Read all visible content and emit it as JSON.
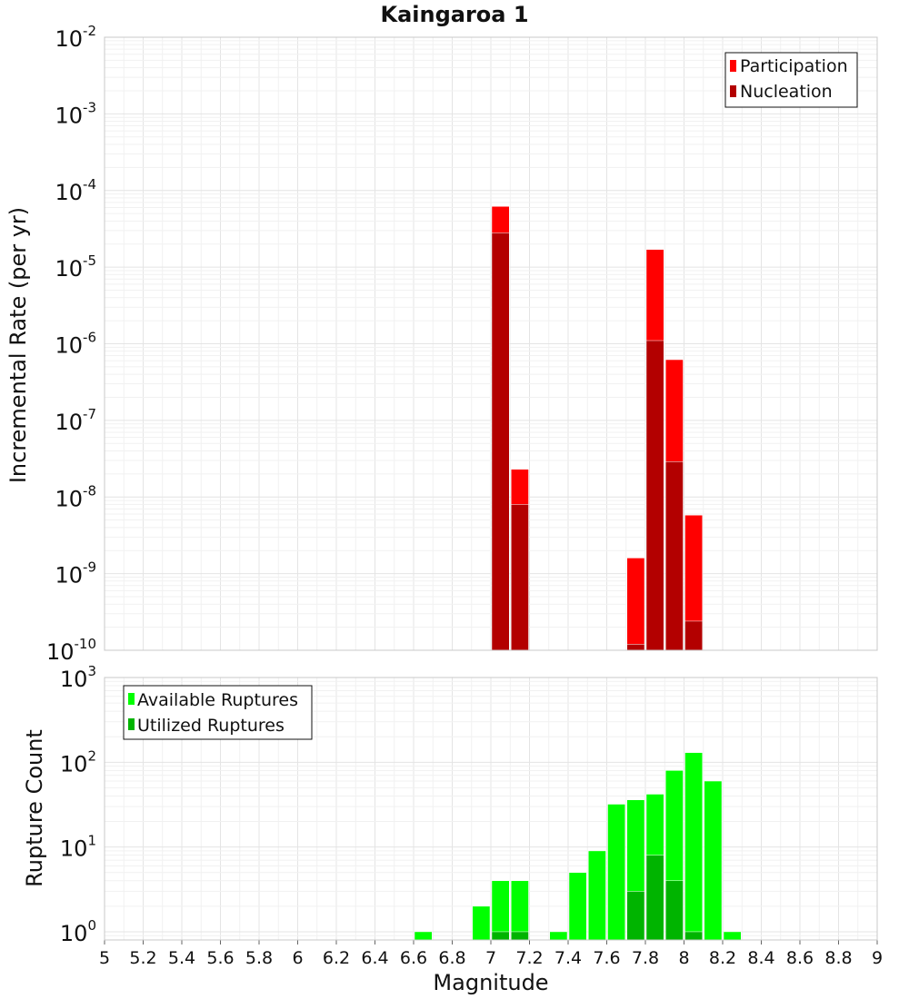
{
  "chart_data": [
    {
      "type": "bar",
      "title": "Kaingaroa 1",
      "ylabel": "Incremental Rate (per yr)",
      "yscale": "log",
      "ylim": [
        1e-10,
        0.01
      ],
      "xlim": [
        5,
        9
      ],
      "bin_width": 0.1,
      "legend_placement": "top-right",
      "grid": true,
      "y_tick_exponents": [
        "-10",
        "-9",
        "-8",
        "-7",
        "-6",
        "-5",
        "-4",
        "-3",
        "-2"
      ],
      "y_tick_base": "10",
      "series": [
        {
          "name": "Participation",
          "color": "#ff0000",
          "x": [
            7.05,
            7.15,
            7.75,
            7.85,
            7.95,
            8.05
          ],
          "values": [
            6.2e-05,
            2.3e-08,
            1.6e-09,
            1.7e-05,
            6.2e-07,
            5.8e-09
          ]
        },
        {
          "name": "Nucleation",
          "color": "#b30000",
          "x": [
            7.05,
            7.15,
            7.75,
            7.85,
            7.95,
            8.05
          ],
          "values": [
            2.8e-05,
            8e-09,
            1.2e-10,
            1.1e-06,
            2.9e-08,
            2.4e-10
          ]
        }
      ]
    },
    {
      "type": "bar",
      "xlabel": "Magnitude",
      "ylabel": "Rupture Count",
      "yscale": "log",
      "ylim": [
        0.8,
        1000
      ],
      "xlim": [
        5,
        9
      ],
      "bin_width": 0.1,
      "legend_placement": "top-left",
      "grid": true,
      "y_tick_exponents": [
        "0",
        "1",
        "2",
        "3"
      ],
      "y_tick_base": "10",
      "x_ticks": [
        "5",
        "5.2",
        "5.4",
        "5.6",
        "5.8",
        "6",
        "6.2",
        "6.4",
        "6.6",
        "6.8",
        "7",
        "7.2",
        "7.4",
        "7.6",
        "7.8",
        "8",
        "8.2",
        "8.4",
        "8.6",
        "8.8",
        "9"
      ],
      "series": [
        {
          "name": "Available Ruptures",
          "color": "#00ff00",
          "x": [
            6.65,
            6.95,
            7.05,
            7.15,
            7.35,
            7.45,
            7.55,
            7.65,
            7.75,
            7.85,
            7.95,
            8.05,
            8.15,
            8.25
          ],
          "values": [
            1,
            2,
            4,
            4,
            1,
            5,
            9,
            32,
            36,
            42,
            80,
            130,
            60,
            1
          ]
        },
        {
          "name": "Utilized Ruptures",
          "color": "#00b400",
          "x": [
            7.05,
            7.15,
            7.75,
            7.85,
            7.95,
            8.05
          ],
          "values": [
            1,
            1,
            3,
            8,
            4,
            1
          ]
        }
      ]
    }
  ]
}
